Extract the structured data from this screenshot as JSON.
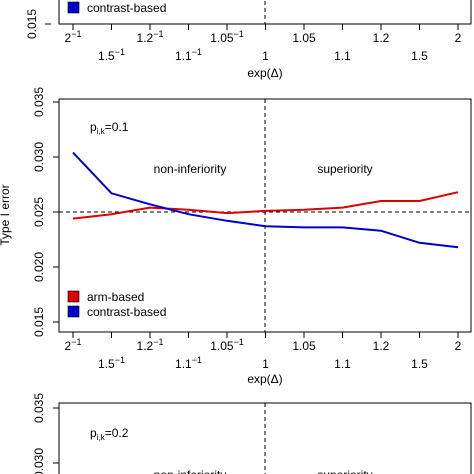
{
  "chart_data": [
    {
      "type": "line",
      "panel": "top",
      "visible_partially": true,
      "xlabel": "exp(Δ)",
      "ylabel": "",
      "ylim": [
        0.015,
        0.035
      ],
      "y_ticks": [
        "0.015"
      ],
      "x_ticks": [
        {
          "base": "2",
          "exp": "−1"
        },
        {
          "base": "1.5",
          "exp": "−1"
        },
        {
          "base": "1.2",
          "exp": "−1"
        },
        {
          "base": "1.1",
          "exp": "−1"
        },
        {
          "base": "1.05",
          "exp": "−1"
        },
        {
          "base": "1",
          "exp": ""
        },
        {
          "base": "1.05",
          "exp": ""
        },
        {
          "base": "1.1",
          "exp": ""
        },
        {
          "base": "1.2",
          "exp": ""
        },
        {
          "base": "1.5",
          "exp": ""
        },
        {
          "base": "2",
          "exp": ""
        }
      ],
      "legend": [
        {
          "name": "contrast-based",
          "color": "#0000cc"
        }
      ]
    },
    {
      "type": "line",
      "panel": "middle",
      "title": "p",
      "title_sub": "i,k",
      "title_value": "=0.1",
      "xlabel": "exp(Δ)",
      "ylabel": "Type I error",
      "ylim": [
        0.015,
        0.035
      ],
      "y_ticks": [
        "0.015",
        "0.020",
        "0.025",
        "0.030",
        "0.035"
      ],
      "reference_y": 0.025,
      "region_labels": [
        "non-inferiority",
        "superiority"
      ],
      "x_ticks": [
        {
          "base": "2",
          "exp": "−1"
        },
        {
          "base": "1.5",
          "exp": "−1"
        },
        {
          "base": "1.2",
          "exp": "−1"
        },
        {
          "base": "1.1",
          "exp": "−1"
        },
        {
          "base": "1.05",
          "exp": "−1"
        },
        {
          "base": "1",
          "exp": ""
        },
        {
          "base": "1.05",
          "exp": ""
        },
        {
          "base": "1.1",
          "exp": ""
        },
        {
          "base": "1.2",
          "exp": ""
        },
        {
          "base": "1.5",
          "exp": ""
        },
        {
          "base": "2",
          "exp": ""
        }
      ],
      "series": [
        {
          "name": "arm-based",
          "color": "#dd0000",
          "values": [
            0.0244,
            0.0248,
            0.0254,
            0.0252,
            0.0249,
            0.0251,
            0.0252,
            0.0254,
            0.026,
            0.026,
            0.0268
          ]
        },
        {
          "name": "contrast-based",
          "color": "#0000cc",
          "values": [
            0.0304,
            0.0267,
            0.0257,
            0.0248,
            0.0242,
            0.0237,
            0.0236,
            0.0236,
            0.0233,
            0.0222,
            0.0218
          ]
        }
      ]
    },
    {
      "type": "line",
      "panel": "bottom",
      "visible_partially": true,
      "title": "p",
      "title_sub": "i,k",
      "title_value": "=0.2",
      "ylim": [
        0.015,
        0.035
      ],
      "y_ticks": [
        "0.030",
        "0.035"
      ],
      "region_labels": [
        "non-inferiority",
        "superiority"
      ]
    }
  ]
}
